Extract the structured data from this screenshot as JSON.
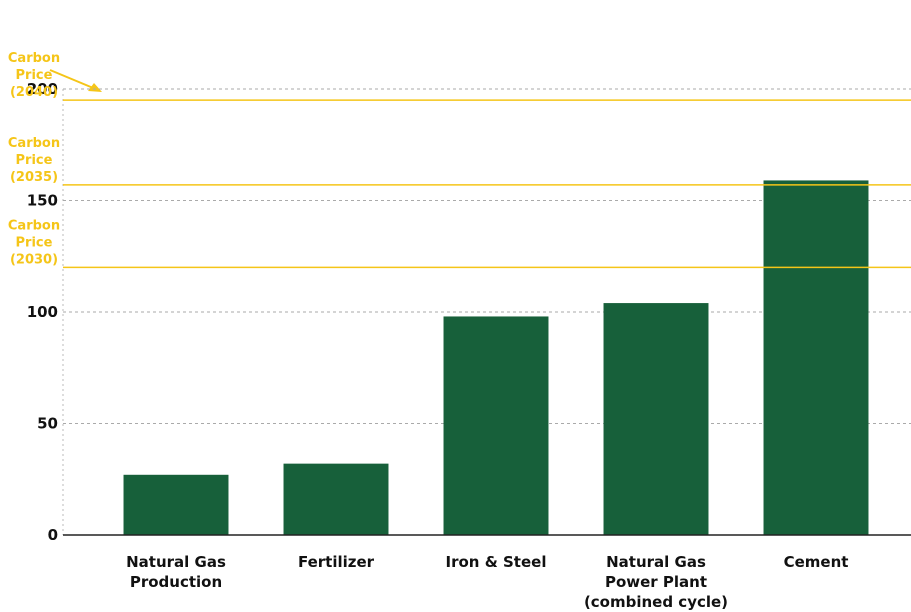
{
  "chart_data": {
    "type": "bar",
    "categories": [
      [
        "Natural Gas",
        "Production"
      ],
      [
        "Fertilizer"
      ],
      [
        "Iron & Steel"
      ],
      [
        "Natural Gas",
        "Power Plant",
        "(combined cycle)"
      ],
      [
        "Cement"
      ]
    ],
    "values": [
      27,
      32,
      98,
      104,
      159
    ],
    "color": "#17603a",
    "ylim": [
      0,
      200
    ],
    "yticks": [
      0,
      50,
      100,
      150,
      200
    ],
    "grid": true,
    "reference_lines": [
      {
        "label": [
          "Carbon",
          "Price",
          "(2040)"
        ],
        "value": 195
      },
      {
        "label": [
          "Carbon",
          "Price",
          "(2035)"
        ],
        "value": 157
      },
      {
        "label": [
          "Carbon",
          "Price",
          "(2030)"
        ],
        "value": 120
      }
    ],
    "reference_color": "#f5c518"
  }
}
